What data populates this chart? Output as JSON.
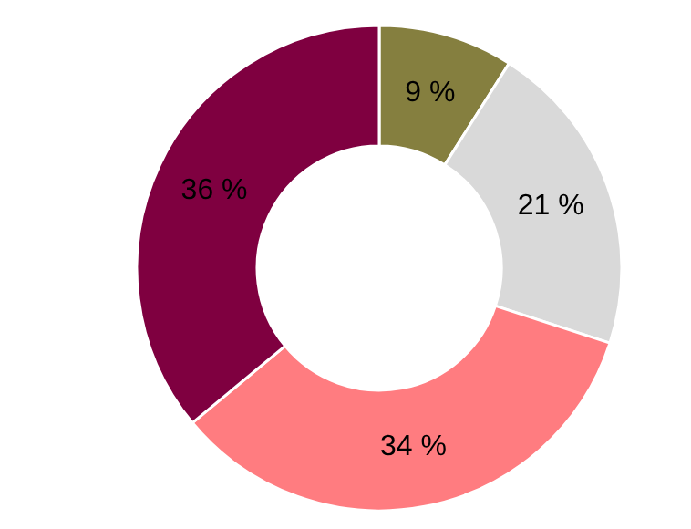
{
  "chart_data": {
    "type": "donut",
    "categories": [
      null,
      null,
      null,
      null
    ],
    "values": [
      9,
      21,
      34,
      36
    ],
    "colors": [
      "#857f3f",
      "#d9d9d9",
      "#ff7c80",
      "#7f0040"
    ],
    "value_labels": [
      "9 %",
      "21 %",
      "34 %",
      "36 %"
    ]
  }
}
